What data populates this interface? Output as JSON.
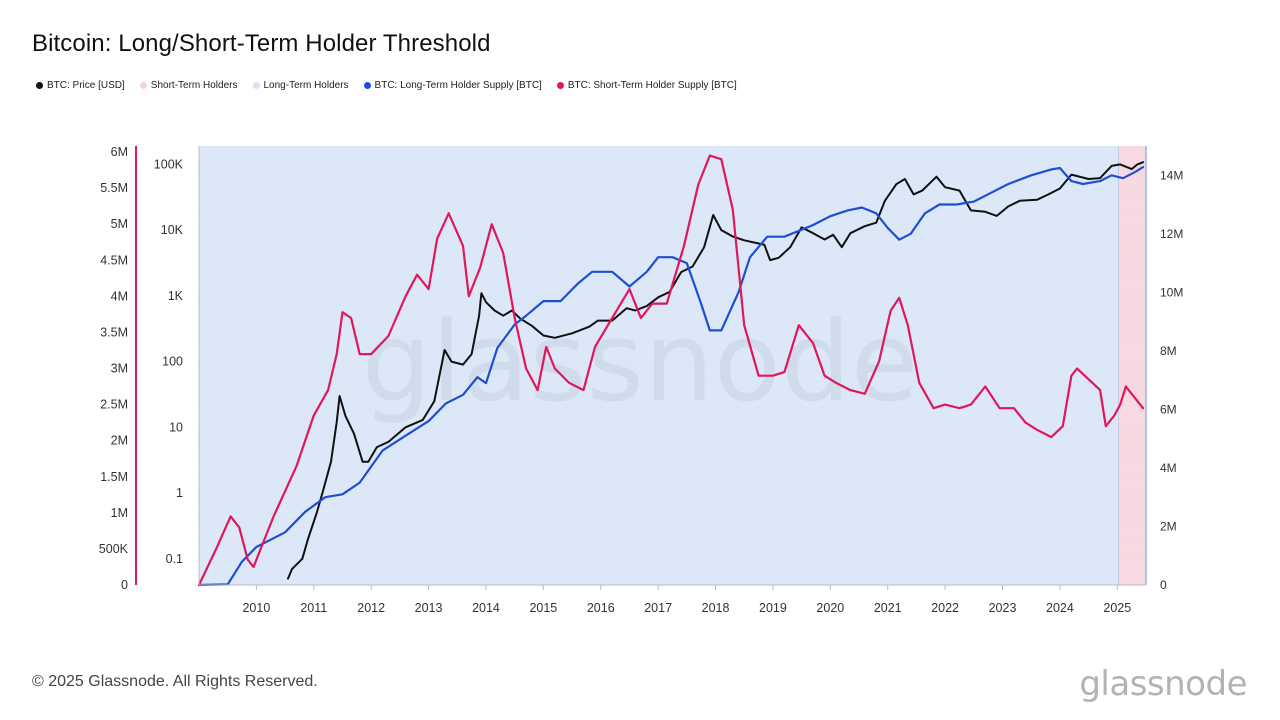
{
  "title": "Bitcoin: Long/Short-Term Holder Threshold",
  "legend": [
    {
      "label": "BTC: Price [USD]",
      "color": "#111111"
    },
    {
      "label": "Short-Term Holders",
      "color": "#f6d3dc"
    },
    {
      "label": "Long-Term Holders",
      "color": "#d6e3f7"
    },
    {
      "label": "BTC: Long-Term Holder Supply [BTC]",
      "color": "#1f4fd1"
    },
    {
      "label": "BTC: Short-Term Holder Supply [BTC]",
      "color": "#e0175a"
    }
  ],
  "watermark": "glassnode",
  "footer": "© 2025 Glassnode. All Rights Reserved.",
  "brand": "glassnode",
  "chart_data": {
    "type": "line",
    "title": "Bitcoin: Long/Short-Term Holder Threshold",
    "x_ticks": [
      "2010",
      "2011",
      "2012",
      "2013",
      "2014",
      "2015",
      "2016",
      "2017",
      "2018",
      "2019",
      "2020",
      "2021",
      "2022",
      "2023",
      "2024",
      "2025"
    ],
    "x_range": [
      2009.0,
      2025.5
    ],
    "left_axis_sth": {
      "ticks": [
        "0",
        "500K",
        "1M",
        "1.5M",
        "2M",
        "2.5M",
        "3M",
        "3.5M",
        "4M",
        "4.5M",
        "5M",
        "5.5M",
        "6M"
      ],
      "range": [
        0,
        6000000
      ]
    },
    "left_axis_price": {
      "ticks": [
        "0.1",
        "1",
        "10",
        "100",
        "1K",
        "10K",
        "100K"
      ],
      "scale": "log",
      "range": [
        0.03,
        150000
      ]
    },
    "right_axis_lth": {
      "ticks": [
        "0",
        "2M",
        "4M",
        "6M",
        "8M",
        "10M",
        "12M",
        "14M"
      ],
      "range": [
        0,
        15000000
      ]
    },
    "shaded_regions": [
      {
        "series": "Long-Term Holders",
        "x_range": [
          2009.0,
          2025.02
        ],
        "color": "#d6e3f7"
      },
      {
        "series": "Short-Term Holders",
        "x_range": [
          2025.02,
          2025.5
        ],
        "color": "#f6d3dc"
      }
    ],
    "series": [
      {
        "name": "BTC: Price [USD]",
        "axis": "price",
        "color": "#111111",
        "points": [
          [
            2010.55,
            0.05
          ],
          [
            2010.62,
            0.07
          ],
          [
            2010.8,
            0.1
          ],
          [
            2010.9,
            0.2
          ],
          [
            2011.05,
            0.5
          ],
          [
            2011.15,
            1
          ],
          [
            2011.3,
            3
          ],
          [
            2011.4,
            12
          ],
          [
            2011.45,
            30
          ],
          [
            2011.55,
            15
          ],
          [
            2011.7,
            8
          ],
          [
            2011.85,
            3
          ],
          [
            2011.95,
            3
          ],
          [
            2012.1,
            5
          ],
          [
            2012.3,
            6
          ],
          [
            2012.6,
            10
          ],
          [
            2012.9,
            13
          ],
          [
            2013.1,
            25
          ],
          [
            2013.28,
            150
          ],
          [
            2013.4,
            100
          ],
          [
            2013.6,
            90
          ],
          [
            2013.75,
            130
          ],
          [
            2013.88,
            500
          ],
          [
            2013.92,
            1100
          ],
          [
            2014.0,
            800
          ],
          [
            2014.15,
            600
          ],
          [
            2014.3,
            500
          ],
          [
            2014.45,
            600
          ],
          [
            2014.6,
            450
          ],
          [
            2014.8,
            350
          ],
          [
            2015.0,
            250
          ],
          [
            2015.2,
            230
          ],
          [
            2015.5,
            270
          ],
          [
            2015.8,
            340
          ],
          [
            2015.95,
            420
          ],
          [
            2016.2,
            420
          ],
          [
            2016.45,
            650
          ],
          [
            2016.6,
            600
          ],
          [
            2016.8,
            700
          ],
          [
            2017.0,
            950
          ],
          [
            2017.2,
            1150
          ],
          [
            2017.4,
            2300
          ],
          [
            2017.6,
            2800
          ],
          [
            2017.8,
            5500
          ],
          [
            2017.96,
            17000
          ],
          [
            2018.1,
            10000
          ],
          [
            2018.3,
            8000
          ],
          [
            2018.5,
            7000
          ],
          [
            2018.85,
            6000
          ],
          [
            2018.95,
            3500
          ],
          [
            2019.1,
            3800
          ],
          [
            2019.3,
            5500
          ],
          [
            2019.5,
            11000
          ],
          [
            2019.7,
            9000
          ],
          [
            2019.9,
            7200
          ],
          [
            2020.05,
            8500
          ],
          [
            2020.2,
            5500
          ],
          [
            2020.35,
            9000
          ],
          [
            2020.6,
            11500
          ],
          [
            2020.8,
            13000
          ],
          [
            2020.95,
            28000
          ],
          [
            2021.15,
            50000
          ],
          [
            2021.3,
            60000
          ],
          [
            2021.45,
            35000
          ],
          [
            2021.6,
            40000
          ],
          [
            2021.85,
            65000
          ],
          [
            2022.0,
            45000
          ],
          [
            2022.25,
            40000
          ],
          [
            2022.45,
            20000
          ],
          [
            2022.7,
            19000
          ],
          [
            2022.9,
            16500
          ],
          [
            2023.1,
            23000
          ],
          [
            2023.3,
            28000
          ],
          [
            2023.6,
            29000
          ],
          [
            2023.8,
            35000
          ],
          [
            2024.0,
            43000
          ],
          [
            2024.2,
            70000
          ],
          [
            2024.5,
            60000
          ],
          [
            2024.7,
            62000
          ],
          [
            2024.9,
            95000
          ],
          [
            2025.05,
            100000
          ],
          [
            2025.25,
            85000
          ],
          [
            2025.35,
            100000
          ],
          [
            2025.45,
            108000
          ]
        ]
      },
      {
        "name": "BTC: Long-Term Holder Supply [BTC]",
        "axis": "lth",
        "color": "#1f4fd1",
        "points": [
          [
            2009.0,
            0
          ],
          [
            2009.5,
            20000
          ],
          [
            2009.75,
            800000
          ],
          [
            2010.0,
            1300000
          ],
          [
            2010.5,
            1800000
          ],
          [
            2010.85,
            2500000
          ],
          [
            2011.2,
            3000000
          ],
          [
            2011.5,
            3100000
          ],
          [
            2011.8,
            3500000
          ],
          [
            2012.2,
            4600000
          ],
          [
            2012.6,
            5100000
          ],
          [
            2013.0,
            5600000
          ],
          [
            2013.3,
            6200000
          ],
          [
            2013.6,
            6500000
          ],
          [
            2013.85,
            7100000
          ],
          [
            2014.0,
            6900000
          ],
          [
            2014.2,
            8100000
          ],
          [
            2014.5,
            8900000
          ],
          [
            2014.7,
            9200000
          ],
          [
            2015.0,
            9700000
          ],
          [
            2015.3,
            9700000
          ],
          [
            2015.6,
            10300000
          ],
          [
            2015.85,
            10700000
          ],
          [
            2016.2,
            10700000
          ],
          [
            2016.5,
            10200000
          ],
          [
            2016.8,
            10700000
          ],
          [
            2017.0,
            11200000
          ],
          [
            2017.25,
            11200000
          ],
          [
            2017.5,
            11000000
          ],
          [
            2017.75,
            9600000
          ],
          [
            2017.9,
            8700000
          ],
          [
            2018.1,
            8700000
          ],
          [
            2018.4,
            10000000
          ],
          [
            2018.6,
            11200000
          ],
          [
            2018.9,
            11900000
          ],
          [
            2019.2,
            11900000
          ],
          [
            2019.45,
            12100000
          ],
          [
            2019.7,
            12300000
          ],
          [
            2020.0,
            12600000
          ],
          [
            2020.3,
            12800000
          ],
          [
            2020.55,
            12900000
          ],
          [
            2020.8,
            12700000
          ],
          [
            2021.0,
            12200000
          ],
          [
            2021.2,
            11800000
          ],
          [
            2021.4,
            12000000
          ],
          [
            2021.65,
            12700000
          ],
          [
            2021.9,
            13000000
          ],
          [
            2022.2,
            13000000
          ],
          [
            2022.5,
            13100000
          ],
          [
            2022.8,
            13400000
          ],
          [
            2023.1,
            13700000
          ],
          [
            2023.5,
            14000000
          ],
          [
            2023.85,
            14200000
          ],
          [
            2024.0,
            14250000
          ],
          [
            2024.2,
            13800000
          ],
          [
            2024.4,
            13700000
          ],
          [
            2024.7,
            13800000
          ],
          [
            2024.9,
            14000000
          ],
          [
            2025.1,
            13900000
          ],
          [
            2025.3,
            14100000
          ],
          [
            2025.45,
            14280000
          ]
        ]
      },
      {
        "name": "BTC: Short-Term Holder Supply [BTC]",
        "axis": "sth",
        "color": "#e0175a",
        "points": [
          [
            2009.0,
            0
          ],
          [
            2009.3,
            500000
          ],
          [
            2009.55,
            950000
          ],
          [
            2009.7,
            800000
          ],
          [
            2009.85,
            350000
          ],
          [
            2009.95,
            250000
          ],
          [
            2010.3,
            950000
          ],
          [
            2010.7,
            1650000
          ],
          [
            2011.0,
            2350000
          ],
          [
            2011.25,
            2700000
          ],
          [
            2011.4,
            3200000
          ],
          [
            2011.5,
            3780000
          ],
          [
            2011.65,
            3700000
          ],
          [
            2011.8,
            3200000
          ],
          [
            2012.0,
            3200000
          ],
          [
            2012.3,
            3450000
          ],
          [
            2012.6,
            4000000
          ],
          [
            2012.8,
            4300000
          ],
          [
            2013.0,
            4100000
          ],
          [
            2013.15,
            4800000
          ],
          [
            2013.35,
            5150000
          ],
          [
            2013.6,
            4700000
          ],
          [
            2013.7,
            4000000
          ],
          [
            2013.9,
            4400000
          ],
          [
            2014.1,
            5000000
          ],
          [
            2014.3,
            4600000
          ],
          [
            2014.5,
            3700000
          ],
          [
            2014.7,
            3000000
          ],
          [
            2014.9,
            2700000
          ],
          [
            2015.05,
            3300000
          ],
          [
            2015.2,
            3000000
          ],
          [
            2015.45,
            2800000
          ],
          [
            2015.7,
            2700000
          ],
          [
            2015.9,
            3300000
          ],
          [
            2016.2,
            3700000
          ],
          [
            2016.5,
            4100000
          ],
          [
            2016.7,
            3700000
          ],
          [
            2016.9,
            3900000
          ],
          [
            2017.15,
            3900000
          ],
          [
            2017.45,
            4700000
          ],
          [
            2017.7,
            5550000
          ],
          [
            2017.9,
            5950000
          ],
          [
            2018.1,
            5900000
          ],
          [
            2018.3,
            5200000
          ],
          [
            2018.5,
            3600000
          ],
          [
            2018.75,
            2900000
          ],
          [
            2019.0,
            2900000
          ],
          [
            2019.2,
            2950000
          ],
          [
            2019.45,
            3600000
          ],
          [
            2019.7,
            3350000
          ],
          [
            2019.9,
            2900000
          ],
          [
            2020.1,
            2800000
          ],
          [
            2020.35,
            2700000
          ],
          [
            2020.6,
            2650000
          ],
          [
            2020.85,
            3100000
          ],
          [
            2021.05,
            3800000
          ],
          [
            2021.2,
            3980000
          ],
          [
            2021.35,
            3600000
          ],
          [
            2021.55,
            2800000
          ],
          [
            2021.8,
            2450000
          ],
          [
            2022.0,
            2500000
          ],
          [
            2022.25,
            2450000
          ],
          [
            2022.45,
            2500000
          ],
          [
            2022.7,
            2750000
          ],
          [
            2022.95,
            2450000
          ],
          [
            2023.2,
            2450000
          ],
          [
            2023.4,
            2250000
          ],
          [
            2023.6,
            2150000
          ],
          [
            2023.85,
            2050000
          ],
          [
            2024.05,
            2200000
          ],
          [
            2024.2,
            2900000
          ],
          [
            2024.3,
            3000000
          ],
          [
            2024.5,
            2850000
          ],
          [
            2024.7,
            2700000
          ],
          [
            2024.8,
            2200000
          ],
          [
            2024.95,
            2350000
          ],
          [
            2025.05,
            2500000
          ],
          [
            2025.15,
            2750000
          ],
          [
            2025.3,
            2600000
          ],
          [
            2025.45,
            2450000
          ]
        ]
      }
    ]
  }
}
